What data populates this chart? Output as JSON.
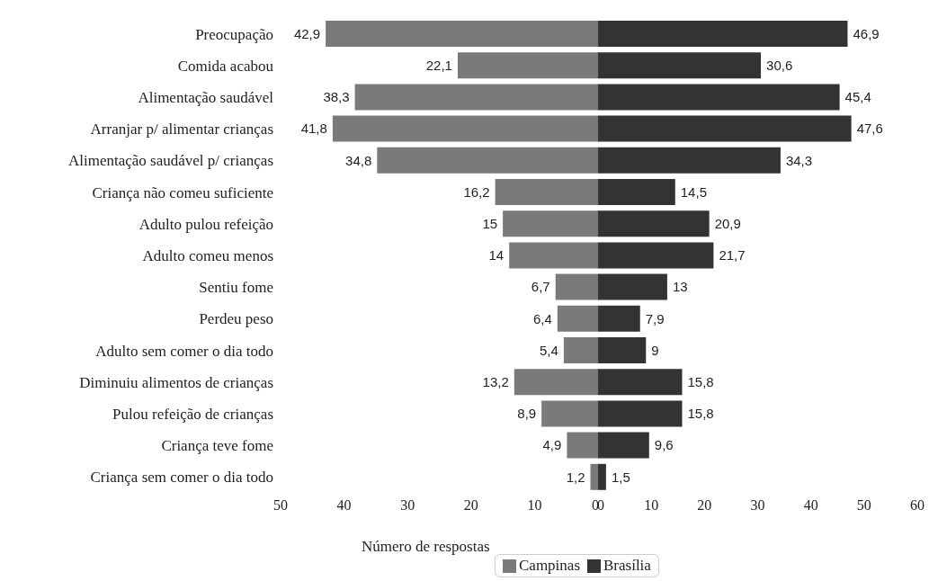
{
  "chart_data": [
    {
      "type": "bar",
      "orientation": "horizontal",
      "categories": [
        "Preocupação",
        "Comida acabou",
        "Alimentação saudável ",
        "Arranjar p/ alimentar crianças",
        "Alimentação saudável p/ crianças",
        "Criança não comeu suficiente",
        "Adulto pulou refeição",
        "Adulto comeu menos",
        "Sentiu fome",
        "Perdeu peso",
        "Adulto sem comer o dia todo",
        "Diminuiu alimentos de crianças",
        "Pulou refeição de crianças",
        "Criança teve fome",
        "Criança sem comer o dia todo"
      ],
      "series": [
        {
          "name": "Campinas",
          "color": "#7a7a7c",
          "values": [
            42.9,
            22.1,
            38.3,
            41.8,
            34.8,
            16.2,
            15,
            14,
            6.7,
            6.4,
            5.4,
            13.2,
            8.9,
            4.9,
            1.2
          ],
          "value_labels": [
            "42,9",
            "22,1",
            "38,3",
            "41,8",
            "34,8",
            "16,2",
            "15",
            "14",
            "6,7",
            "6,4",
            "5,4",
            "13,2",
            "8,9",
            "4,9",
            "1,2"
          ]
        }
      ],
      "xlim": [
        50,
        0
      ],
      "xticks": [
        50,
        40,
        30,
        20,
        10,
        0
      ],
      "xlabel": "Número de respostas",
      "legend": "bottom"
    },
    {
      "type": "bar",
      "orientation": "horizontal",
      "categories": [
        null,
        null,
        null,
        null,
        null,
        null,
        null,
        null,
        null,
        null,
        null,
        null,
        null,
        null,
        null
      ],
      "series": [
        {
          "name": "Brasília",
          "color": "#333333",
          "values": [
            46.9,
            30.6,
            45.4,
            47.6,
            34.3,
            14.5,
            20.9,
            21.7,
            13,
            7.9,
            9,
            15.8,
            15.8,
            9.6,
            1.5
          ],
          "value_labels": [
            "46,9",
            "30,6",
            "45,4",
            "47,6",
            "34,3",
            "14,5",
            "20,9",
            "21,7",
            "13",
            "7,9",
            "9",
            "15,8",
            "15,8",
            "9,6",
            "1,5"
          ]
        }
      ],
      "xlim": [
        0,
        60
      ],
      "xticks": [
        0,
        10,
        20,
        30,
        40,
        50,
        60
      ],
      "tick_labels": "x",
      "legend": "bottom"
    }
  ]
}
